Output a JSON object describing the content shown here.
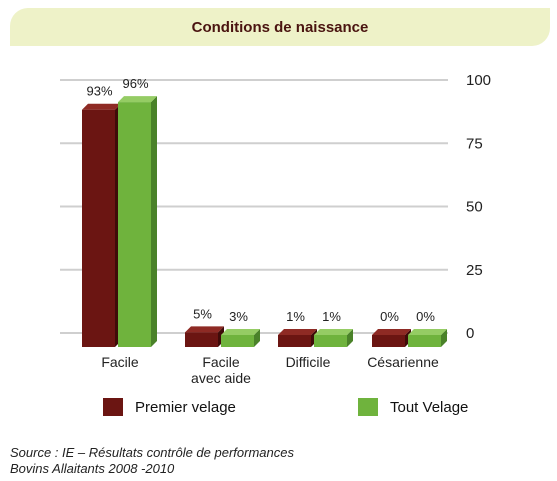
{
  "colors": {
    "premier": "#6b1512",
    "tout": "#6fb33d",
    "title_bg": "#eef2c8",
    "title_text": "#4a1410"
  },
  "chart_data": {
    "type": "bar",
    "title": "Conditions de naissance",
    "categories": [
      "Facile",
      "Facile\navec aide",
      "Difficile",
      "Césarienne"
    ],
    "series": [
      {
        "name": "Premier velage",
        "values": [
          93,
          5,
          1,
          0
        ],
        "labels": [
          "93%",
          "5%",
          "1%",
          "0%"
        ]
      },
      {
        "name": "Tout Velage",
        "values": [
          96,
          3,
          1,
          0
        ],
        "labels": [
          "96%",
          "3%",
          "1%",
          "0%"
        ]
      }
    ],
    "yticks": [
      "100",
      "75",
      "50",
      "25",
      "0"
    ],
    "ylim": [
      0,
      100
    ],
    "grid": true,
    "legend_position": "bottom"
  },
  "source": {
    "line1": "Source : IE – Résultats contrôle de performances",
    "line2": "Bovins Allaitants 2008 -2010"
  }
}
